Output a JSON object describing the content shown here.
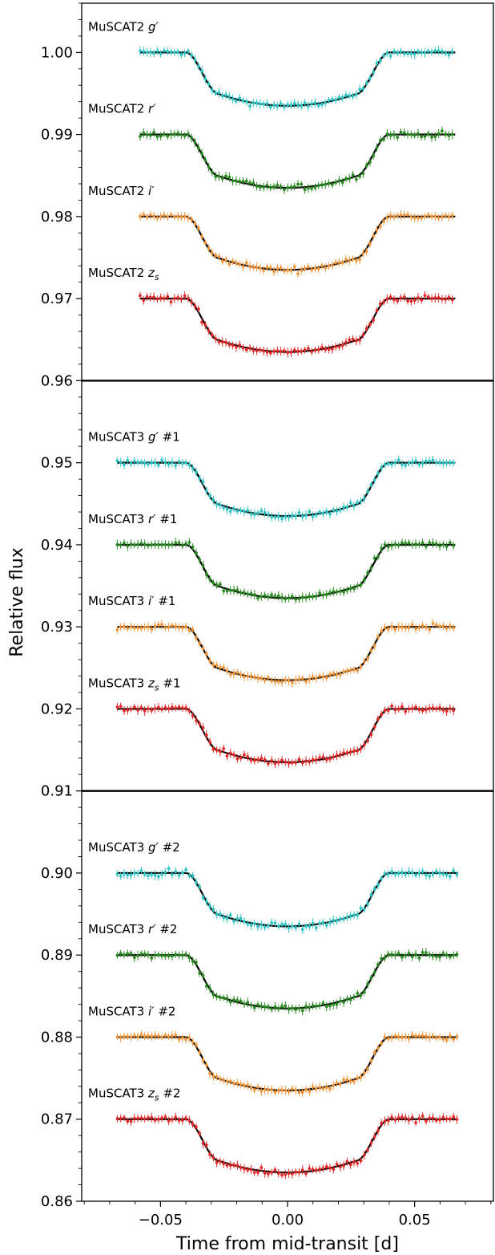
{
  "chart_data": {
    "type": "scatter",
    "xlabel": "Time from mid-transit [d]",
    "ylabel": "Relative flux",
    "xlim": [
      -0.081,
      0.081
    ],
    "ylim": [
      0.86,
      1.006
    ],
    "xticks": [
      -0.05,
      0.0,
      0.05
    ],
    "xtick_labels": [
      "−0.05",
      "0.00",
      "0.05"
    ],
    "yticks": [
      0.86,
      0.87,
      0.88,
      0.89,
      0.9,
      0.91,
      0.92,
      0.93,
      0.94,
      0.95,
      0.96,
      0.97,
      0.98,
      0.99,
      1.0
    ],
    "ytick_labels": [
      "0.86",
      "0.87",
      "0.88",
      "0.89",
      "0.90",
      "0.91",
      "0.92",
      "0.93",
      "0.94",
      "0.95",
      "0.96",
      "0.97",
      "0.98",
      "0.99",
      "1.00"
    ],
    "separators": [
      0.96,
      0.91
    ],
    "model_color": "#000000",
    "transit_model": {
      "t1": 0.04,
      "t2": 0.027,
      "depth": 0.0065
    },
    "series": [
      {
        "name": "MuSCAT2 g′",
        "label": {
          "inst": "MuSCAT2",
          "band": "g",
          "sup": "′",
          "sub": "",
          "tag": ""
        },
        "offset": 1.0,
        "x_range": [
          -0.058,
          0.066
        ],
        "color": "#2ec4c4"
      },
      {
        "name": "MuSCAT2 r′",
        "label": {
          "inst": "MuSCAT2",
          "band": "r",
          "sup": "′",
          "sub": "",
          "tag": ""
        },
        "offset": 0.99,
        "x_range": [
          -0.058,
          0.066
        ],
        "color": "#2a8a22"
      },
      {
        "name": "MuSCAT2 i′",
        "label": {
          "inst": "MuSCAT2",
          "band": "i",
          "sup": "′",
          "sub": "",
          "tag": ""
        },
        "offset": 0.98,
        "x_range": [
          -0.058,
          0.066
        ],
        "color": "#f0963a"
      },
      {
        "name": "MuSCAT2 zs",
        "label": {
          "inst": "MuSCAT2",
          "band": "z",
          "sup": "",
          "sub": "s",
          "tag": ""
        },
        "offset": 0.97,
        "x_range": [
          -0.058,
          0.066
        ],
        "color": "#e02828"
      },
      {
        "name": "MuSCAT3 g′ #1",
        "label": {
          "inst": "MuSCAT3",
          "band": "g",
          "sup": "′",
          "sub": "",
          "tag": "#1"
        },
        "offset": 0.95,
        "x_range": [
          -0.067,
          0.066
        ],
        "color": "#2ec4c4"
      },
      {
        "name": "MuSCAT3 r′ #1",
        "label": {
          "inst": "MuSCAT3",
          "band": "r",
          "sup": "′",
          "sub": "",
          "tag": "#1"
        },
        "offset": 0.94,
        "x_range": [
          -0.067,
          0.066
        ],
        "color": "#2a8a22"
      },
      {
        "name": "MuSCAT3 i′ #1",
        "label": {
          "inst": "MuSCAT3",
          "band": "i",
          "sup": "′",
          "sub": "",
          "tag": "#1"
        },
        "offset": 0.93,
        "x_range": [
          -0.067,
          0.066
        ],
        "color": "#f0963a"
      },
      {
        "name": "MuSCAT3 zs #1",
        "label": {
          "inst": "MuSCAT3",
          "band": "z",
          "sup": "",
          "sub": "s",
          "tag": "#1"
        },
        "offset": 0.92,
        "x_range": [
          -0.067,
          0.066
        ],
        "color": "#e02828"
      },
      {
        "name": "MuSCAT3 g′ #2",
        "label": {
          "inst": "MuSCAT3",
          "band": "g",
          "sup": "′",
          "sub": "",
          "tag": "#2"
        },
        "offset": 0.9,
        "x_range": [
          -0.067,
          0.067
        ],
        "color": "#2ec4c4"
      },
      {
        "name": "MuSCAT3 r′ #2",
        "label": {
          "inst": "MuSCAT3",
          "band": "r",
          "sup": "′",
          "sub": "",
          "tag": "#2"
        },
        "offset": 0.89,
        "x_range": [
          -0.067,
          0.067
        ],
        "color": "#2a8a22"
      },
      {
        "name": "MuSCAT3 i′ #2",
        "label": {
          "inst": "MuSCAT3",
          "band": "i",
          "sup": "′",
          "sub": "",
          "tag": "#2"
        },
        "offset": 0.88,
        "x_range": [
          -0.067,
          0.067
        ],
        "color": "#f0963a"
      },
      {
        "name": "MuSCAT3 zs #2",
        "label": {
          "inst": "MuSCAT3",
          "band": "z",
          "sup": "",
          "sub": "s",
          "tag": "#2"
        },
        "offset": 0.87,
        "x_range": [
          -0.067,
          0.067
        ],
        "color": "#e02828"
      }
    ]
  }
}
